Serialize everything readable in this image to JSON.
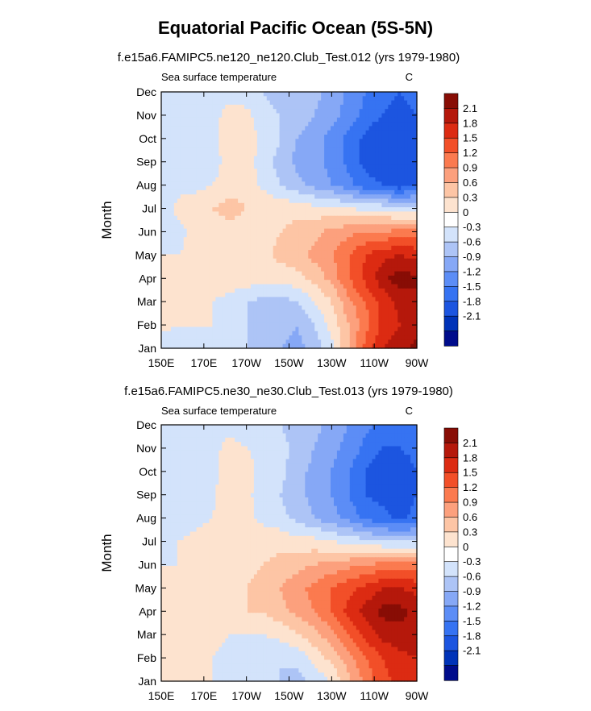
{
  "title": "Equatorial Pacific Ocean (5S-5N)",
  "colors": {
    "levels": [
      "#000c8b",
      "#0033b8",
      "#1c55e0",
      "#3673f2",
      "#5c8df6",
      "#86a8f6",
      "#adc4f6",
      "#d3e3fb",
      "#ffffff",
      "#fde3cf",
      "#fdc5a5",
      "#fca07d",
      "#fb7a4f",
      "#f24f28",
      "#dc2b12",
      "#b5180b",
      "#880d05"
    ],
    "contour_line": "#888888"
  },
  "chart_data": [
    {
      "type": "heatmap",
      "subtitle": "f.e15a6.FAMIPC5.ne120_ne120.Club_Test.012 (yrs 1979-1980)",
      "left_label": "Sea surface temperature",
      "right_label": "C",
      "ylabel": "Month",
      "x_ticks": [
        "150E",
        "170E",
        "170W",
        "150W",
        "130W",
        "110W",
        "90W"
      ],
      "y_ticks": [
        "Jan",
        "Feb",
        "Mar",
        "Apr",
        "May",
        "Jun",
        "Jul",
        "Aug",
        "Sep",
        "Oct",
        "Nov",
        "Dec"
      ],
      "x_range": [
        150,
        270
      ],
      "colorbar_labels": [
        "2.1",
        "1.8",
        "1.5",
        "1.2",
        "0.9",
        "0.6",
        "0.3",
        "0",
        "-0.3",
        "-0.6",
        "-0.9",
        "-1.2",
        "-1.5",
        "-1.8",
        "-2.1"
      ],
      "grid": [
        [
          -0.2,
          -0.2,
          -0.2,
          -0.2,
          -0.3,
          -0.3,
          -0.5,
          -0.6,
          -0.7,
          -0.5,
          -0.1,
          0.6,
          1.3,
          1.8,
          2.0,
          2.2
        ],
        [
          0.1,
          0.0,
          0.0,
          0.0,
          -0.2,
          -0.3,
          -0.4,
          -0.5,
          -0.6,
          -0.3,
          0.1,
          0.6,
          1.1,
          1.6,
          1.8,
          2.0
        ],
        [
          0.2,
          0.2,
          0.1,
          0.0,
          -0.1,
          -0.3,
          -0.4,
          -0.4,
          -0.3,
          0.0,
          0.3,
          0.8,
          1.2,
          1.6,
          1.9,
          2.1
        ],
        [
          0.1,
          0.1,
          0.2,
          0.1,
          0.2,
          0.2,
          0.1,
          0.1,
          0.2,
          0.4,
          0.7,
          1.2,
          1.6,
          2.0,
          2.3,
          2.1
        ],
        [
          0.0,
          0.0,
          0.1,
          0.1,
          0.2,
          0.2,
          0.2,
          0.4,
          0.5,
          0.7,
          0.9,
          1.2,
          1.5,
          1.7,
          1.8,
          1.7
        ],
        [
          -0.1,
          -0.1,
          0.1,
          0.2,
          0.2,
          0.2,
          0.2,
          0.3,
          0.4,
          0.5,
          0.7,
          0.8,
          0.9,
          0.9,
          1.0,
          1.0
        ],
        [
          -0.2,
          0.1,
          0.2,
          0.3,
          0.4,
          0.3,
          0.3,
          0.2,
          0.2,
          0.1,
          0.1,
          0.0,
          -0.1,
          -0.1,
          -0.2,
          -0.2
        ],
        [
          -0.2,
          -0.1,
          -0.1,
          0.0,
          0.2,
          0.2,
          -0.1,
          -0.3,
          -0.5,
          -0.7,
          -0.9,
          -1.1,
          -1.4,
          -1.5,
          -1.7,
          -1.5
        ],
        [
          -0.2,
          -0.1,
          -0.3,
          -0.2,
          0.2,
          0.2,
          -0.2,
          -0.4,
          -0.7,
          -0.8,
          -1.0,
          -1.3,
          -1.6,
          -1.7,
          -1.8,
          -1.6
        ],
        [
          -0.1,
          -0.1,
          -0.2,
          -0.1,
          0.2,
          0.2,
          -0.1,
          -0.3,
          -0.6,
          -0.8,
          -1.0,
          -1.3,
          -1.6,
          -1.8,
          -1.8,
          -1.6
        ],
        [
          0.0,
          0.0,
          0.0,
          -0.1,
          0.1,
          0.1,
          -0.2,
          -0.3,
          -0.4,
          -0.6,
          -0.8,
          -1.0,
          -1.3,
          -1.5,
          -1.6,
          -1.5
        ],
        [
          -0.1,
          -0.1,
          -0.1,
          -0.2,
          -0.1,
          -0.2,
          -0.3,
          -0.4,
          -0.4,
          -0.5,
          -0.7,
          -1.0,
          -1.2,
          -1.4,
          -1.5,
          -1.4
        ]
      ]
    },
    {
      "type": "heatmap",
      "subtitle": "f.e15a6.FAMIPC5.ne30_ne30.Club_Test.013 (yrs 1979-1980)",
      "left_label": "Sea surface temperature",
      "right_label": "C",
      "ylabel": "Month",
      "x_ticks": [
        "150E",
        "170E",
        "170W",
        "150W",
        "130W",
        "110W",
        "90W"
      ],
      "y_ticks": [
        "Jan",
        "Feb",
        "Mar",
        "Apr",
        "May",
        "Jun",
        "Jul",
        "Aug",
        "Sep",
        "Oct",
        "Nov",
        "Dec"
      ],
      "x_range": [
        150,
        270
      ],
      "colorbar_labels": [
        "2.1",
        "1.8",
        "1.5",
        "1.2",
        "0.9",
        "0.6",
        "0.3",
        "0",
        "-0.3",
        "-0.6",
        "-0.9",
        "-1.2",
        "-1.5",
        "-1.8",
        "-2.1"
      ],
      "grid": [
        [
          0.1,
          0.1,
          0.1,
          0.0,
          -0.1,
          -0.2,
          -0.2,
          -0.3,
          -0.4,
          -0.2,
          0.0,
          0.5,
          1.0,
          1.4,
          1.6,
          1.7
        ],
        [
          0.1,
          0.1,
          0.1,
          0.0,
          -0.1,
          -0.2,
          -0.3,
          -0.3,
          -0.2,
          0.1,
          0.4,
          0.8,
          1.2,
          1.5,
          1.7,
          1.8
        ],
        [
          0.1,
          0.1,
          0.1,
          0.1,
          0.0,
          0.0,
          0.0,
          0.1,
          0.3,
          0.5,
          0.8,
          1.2,
          1.6,
          1.9,
          2.0,
          2.0
        ],
        [
          0.1,
          0.2,
          0.2,
          0.2,
          0.3,
          0.3,
          0.3,
          0.5,
          0.7,
          0.9,
          1.2,
          1.6,
          1.9,
          2.2,
          2.2,
          2.0
        ],
        [
          0.1,
          0.1,
          0.1,
          0.2,
          0.2,
          0.3,
          0.4,
          0.6,
          0.8,
          1.0,
          1.2,
          1.4,
          1.6,
          1.8,
          1.8,
          1.7
        ],
        [
          0.0,
          0.0,
          0.1,
          0.1,
          0.2,
          0.2,
          0.3,
          0.4,
          0.5,
          0.6,
          0.7,
          0.8,
          0.9,
          1.0,
          1.0,
          1.0
        ],
        [
          -0.1,
          0.0,
          0.1,
          0.2,
          0.3,
          0.3,
          0.2,
          0.2,
          0.1,
          0.1,
          0.0,
          -0.1,
          -0.2,
          -0.3,
          -0.3,
          -0.3
        ],
        [
          -0.2,
          -0.2,
          -0.1,
          0.0,
          0.3,
          0.1,
          -0.1,
          -0.2,
          -0.4,
          -0.6,
          -0.8,
          -1.0,
          -1.3,
          -1.4,
          -1.6,
          -1.4
        ],
        [
          -0.2,
          -0.2,
          -0.2,
          -0.1,
          0.3,
          0.1,
          -0.2,
          -0.3,
          -0.5,
          -0.7,
          -0.9,
          -1.2,
          -1.5,
          -1.6,
          -1.7,
          -1.5
        ],
        [
          -0.1,
          -0.1,
          -0.2,
          -0.1,
          0.2,
          0.1,
          -0.1,
          -0.2,
          -0.5,
          -0.7,
          -0.9,
          -1.2,
          -1.5,
          -1.7,
          -1.7,
          -1.5
        ],
        [
          0.0,
          0.0,
          -0.1,
          -0.1,
          0.1,
          0.0,
          -0.1,
          -0.2,
          -0.4,
          -0.6,
          -0.8,
          -1.0,
          -1.3,
          -1.5,
          -1.5,
          -1.4
        ],
        [
          -0.1,
          -0.1,
          -0.1,
          -0.1,
          -0.1,
          -0.2,
          -0.3,
          -0.3,
          -0.4,
          -0.5,
          -0.7,
          -0.9,
          -1.1,
          -1.3,
          -1.4,
          -1.3
        ]
      ]
    }
  ]
}
